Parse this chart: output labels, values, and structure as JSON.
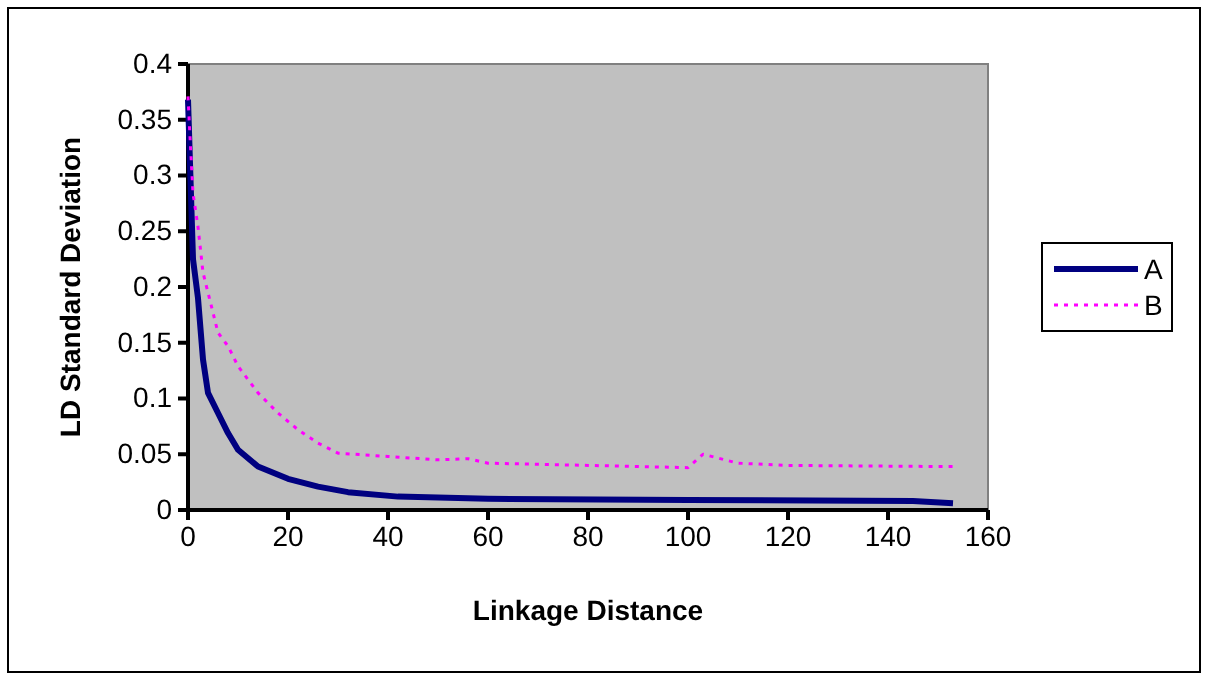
{
  "chart_data": {
    "type": "line",
    "xlabel": "Linkage Distance",
    "ylabel": "LD Standard Deviation",
    "xlim": [
      0,
      160
    ],
    "xticks": [
      0,
      20,
      40,
      60,
      80,
      100,
      120,
      140,
      160
    ],
    "ylim": [
      0,
      0.4
    ],
    "yticks": [
      0,
      0.05,
      0.1,
      0.15,
      0.2,
      0.25,
      0.3,
      0.35,
      0.4
    ],
    "grid": false,
    "legend": "right",
    "marker": "none",
    "series": [
      {
        "name": "A",
        "color": "#000080",
        "line_style": "solid",
        "x": [
          0,
          1,
          2,
          3,
          4,
          6,
          8,
          10,
          14,
          20,
          26,
          32,
          42,
          60,
          100,
          145,
          153
        ],
        "values": [
          0.368,
          0.225,
          0.19,
          0.135,
          0.105,
          0.087,
          0.069,
          0.054,
          0.039,
          0.028,
          0.021,
          0.016,
          0.012,
          0.01,
          0.009,
          0.008,
          0.006
        ]
      },
      {
        "name": "B",
        "color": "#ff00ff",
        "line_style": "dotted",
        "x": [
          0,
          0.5,
          1,
          2,
          3,
          4,
          6,
          8,
          10,
          14,
          18,
          22,
          26,
          30,
          40,
          50,
          56,
          60,
          80,
          100,
          103,
          110,
          120,
          150,
          153
        ],
        "values": [
          0.371,
          0.326,
          0.284,
          0.254,
          0.213,
          0.195,
          0.159,
          0.147,
          0.129,
          0.105,
          0.087,
          0.072,
          0.06,
          0.051,
          0.048,
          0.045,
          0.046,
          0.042,
          0.04,
          0.038,
          0.05,
          0.042,
          0.04,
          0.039,
          0.039
        ]
      }
    ]
  }
}
